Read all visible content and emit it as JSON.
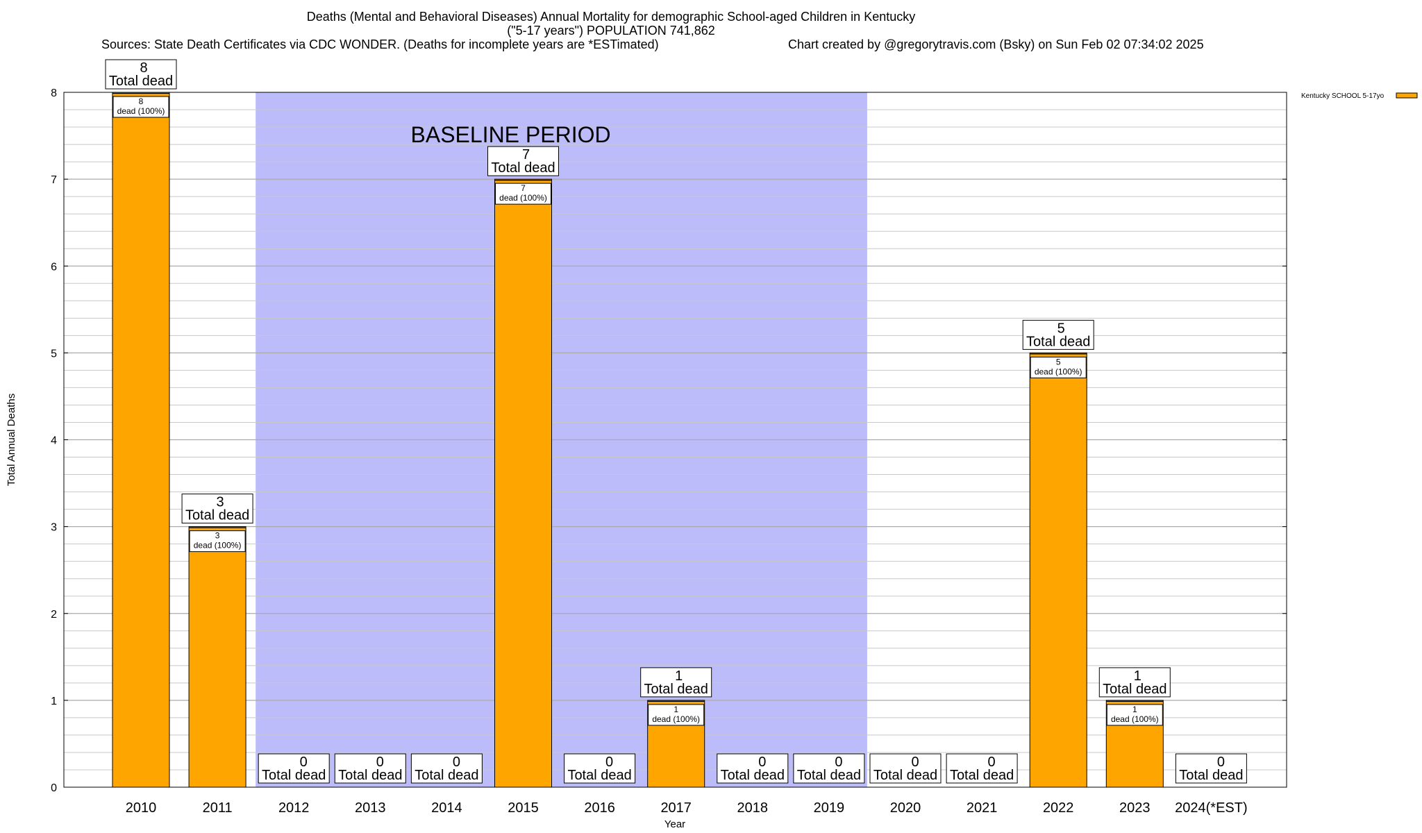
{
  "chart_data": {
    "type": "bar",
    "title_lines": [
      "Deaths (Mental and Behavioral Diseases) Annual Mortality for demographic School-aged Children in Kentucky",
      "(\"5-17 years\") POPULATION 741,862"
    ],
    "sources": "Sources: State Death Certificates via CDC WONDER. (Deaths for incomplete years are *ESTimated)",
    "credit": "Chart created by @gregorytravis.com (Bsky) on Sun Feb 02 07:34:02 2025",
    "xlabel": "Year",
    "ylabel": "Total Annual Deaths",
    "ylim": [
      0,
      8
    ],
    "yticks": [
      0,
      1,
      2,
      3,
      4,
      5,
      6,
      7,
      8
    ],
    "categories": [
      "2010",
      "2011",
      "2012",
      "2013",
      "2014",
      "2015",
      "2016",
      "2017",
      "2018",
      "2019",
      "2020",
      "2021",
      "2022",
      "2023",
      "2024(*EST)"
    ],
    "series": [
      {
        "name": "Kentucky SCHOOL 5-17yo",
        "values": [
          8,
          3,
          0,
          0,
          0,
          7,
          0,
          1,
          0,
          0,
          0,
          0,
          5,
          1,
          0
        ]
      }
    ],
    "total_label": "Total dead",
    "segment_label": "dead (100%)",
    "baseline_label": "BASELINE PERIOD",
    "baseline_range": [
      "2012",
      "2019"
    ],
    "grid": true,
    "legend_position": "top-right",
    "colors": {
      "bar": "#FFA500",
      "baseline": "#BCBCFA"
    }
  }
}
